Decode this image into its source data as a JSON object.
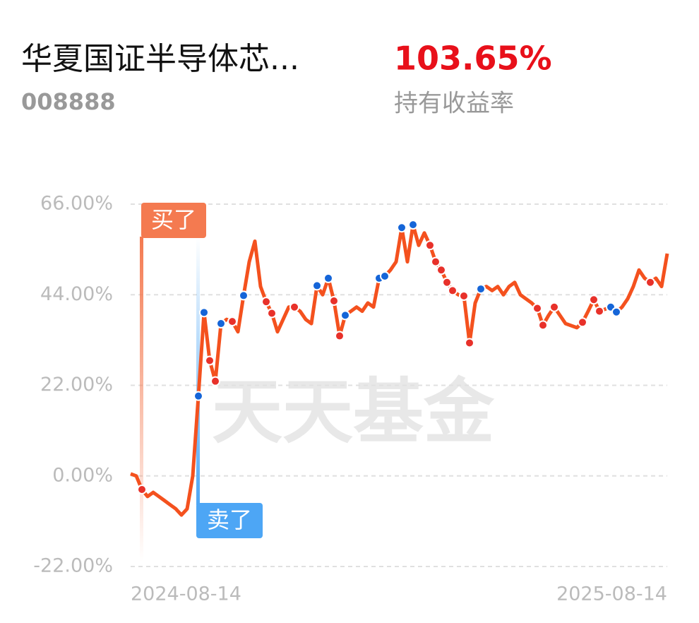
{
  "header": {
    "fund_name": "华夏国证半导体芯...",
    "fund_code": "008888",
    "return_value": "103.65%",
    "return_label": "持有收益率"
  },
  "chart_data": {
    "type": "line",
    "watermark": "天天基金",
    "categories": [
      "2024-08-14",
      null,
      null,
      null,
      null,
      null,
      null,
      null,
      null,
      null,
      null,
      null,
      null,
      null,
      null,
      null,
      null,
      null,
      null,
      null,
      null,
      null,
      null,
      null,
      null,
      null,
      null,
      null,
      null,
      null,
      null,
      null,
      null,
      null,
      null,
      null,
      null,
      null,
      null,
      null,
      null,
      null,
      null,
      null,
      null,
      null,
      null,
      null,
      null,
      null,
      null,
      null,
      null,
      null,
      null,
      null,
      null,
      null,
      null,
      null,
      null,
      null,
      null,
      null,
      null,
      null,
      null,
      null,
      null,
      null,
      null,
      null,
      null,
      null,
      null,
      null,
      null,
      null,
      null,
      null,
      null,
      null,
      null,
      null,
      null,
      null,
      null,
      null,
      null,
      null,
      null,
      null,
      null,
      null,
      null,
      "2025-08-14"
    ],
    "series": [
      {
        "color": "#f4511e",
        "values": [
          0.5,
          0,
          -3.3,
          -5,
          -4,
          -5,
          -6,
          -7,
          -8,
          -9.5,
          -8,
          0,
          19.4,
          39.7,
          28,
          23,
          37,
          38,
          37.5,
          35,
          43.8,
          52,
          57,
          46,
          42.3,
          39.5,
          35,
          38,
          41,
          41,
          40,
          38,
          37,
          46.2,
          44,
          48,
          42.5,
          34,
          39,
          40,
          41,
          40,
          42,
          41,
          48,
          48.5,
          50,
          52,
          60.3,
          52,
          61,
          56,
          59,
          56,
          52,
          50,
          47,
          45,
          44,
          43.7,
          32.3,
          42,
          45.4,
          46,
          45,
          46,
          44,
          46,
          47,
          44,
          43,
          42,
          40.7,
          36.6,
          39,
          41,
          39,
          37,
          36.5,
          36,
          37.3,
          40,
          42.8,
          40,
          40.5,
          41,
          39.8,
          41,
          43,
          46,
          50,
          48,
          47,
          48,
          46,
          54
        ]
      }
    ],
    "buy_markers": {
      "color": "#e8312a",
      "label": "买了",
      "values": [
        null,
        null,
        -3.3,
        null,
        null,
        null,
        null,
        null,
        null,
        null,
        null,
        null,
        null,
        null,
        28,
        23,
        null,
        null,
        37.5,
        null,
        null,
        null,
        null,
        null,
        42.3,
        39.5,
        null,
        null,
        null,
        41,
        null,
        null,
        null,
        null,
        null,
        null,
        42.5,
        34,
        null,
        null,
        null,
        null,
        null,
        null,
        null,
        null,
        null,
        null,
        null,
        null,
        null,
        null,
        null,
        56,
        52,
        50,
        47,
        45,
        null,
        43.7,
        32.3,
        null,
        null,
        null,
        null,
        null,
        null,
        null,
        null,
        null,
        null,
        null,
        40.7,
        36.6,
        null,
        41,
        null,
        null,
        null,
        null,
        37.3,
        null,
        42.8,
        40,
        null,
        null,
        null,
        null,
        null,
        null,
        null,
        null,
        47,
        null,
        null,
        null
      ]
    },
    "sell_markers": {
      "color": "#1565d8",
      "label": "卖了",
      "values": [
        null,
        null,
        null,
        null,
        null,
        null,
        null,
        null,
        null,
        null,
        null,
        null,
        19.4,
        39.7,
        null,
        null,
        37,
        null,
        null,
        null,
        43.8,
        null,
        null,
        null,
        null,
        null,
        null,
        null,
        null,
        null,
        null,
        null,
        null,
        46.2,
        null,
        48,
        null,
        null,
        39,
        null,
        null,
        null,
        null,
        null,
        48,
        48.5,
        null,
        null,
        60.3,
        null,
        61,
        null,
        null,
        null,
        null,
        null,
        null,
        null,
        null,
        null,
        null,
        null,
        45.4,
        null,
        null,
        null,
        null,
        null,
        null,
        null,
        null,
        null,
        null,
        null,
        null,
        null,
        null,
        null,
        null,
        null,
        null,
        null,
        null,
        null,
        null,
        41,
        39.8,
        null,
        null,
        null,
        null,
        null,
        null,
        null,
        null,
        null
      ]
    },
    "ylim": [
      -22,
      66
    ],
    "yticks": [
      {
        "value": -22,
        "label": "-22.00%"
      },
      {
        "value": 0,
        "label": "0.00%"
      },
      {
        "value": 22,
        "label": "22.00%"
      },
      {
        "value": 44,
        "label": "44.00%"
      },
      {
        "value": 66,
        "label": "66.00%"
      }
    ],
    "grid": true
  }
}
